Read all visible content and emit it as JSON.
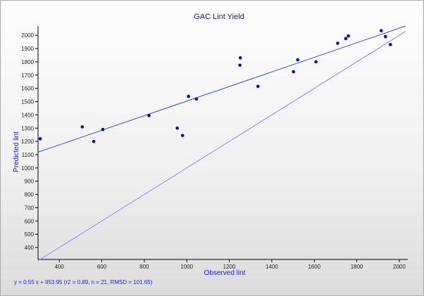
{
  "chart_data": {
    "type": "scatter",
    "title": "GAC Lint Yield",
    "xlabel": "Observed lint",
    "ylabel": "Predicted lint",
    "xlim": [
      300,
      2040
    ],
    "ylim": [
      310,
      2070
    ],
    "xticks": [
      400,
      600,
      800,
      1000,
      1200,
      1400,
      1600,
      1800,
      2000
    ],
    "yticks": [
      400,
      500,
      600,
      700,
      800,
      900,
      1000,
      1100,
      1200,
      1300,
      1400,
      1500,
      1600,
      1700,
      1800,
      1900,
      2000
    ],
    "grid": false,
    "points": [
      {
        "x": 310,
        "y": 1220
      },
      {
        "x": 508,
        "y": 1310
      },
      {
        "x": 562,
        "y": 1200
      },
      {
        "x": 605,
        "y": 1290
      },
      {
        "x": 822,
        "y": 1395
      },
      {
        "x": 955,
        "y": 1300
      },
      {
        "x": 980,
        "y": 1245
      },
      {
        "x": 1008,
        "y": 1540
      },
      {
        "x": 1045,
        "y": 1520
      },
      {
        "x": 1250,
        "y": 1775
      },
      {
        "x": 1252,
        "y": 1830
      },
      {
        "x": 1335,
        "y": 1615
      },
      {
        "x": 1502,
        "y": 1725
      },
      {
        "x": 1522,
        "y": 1815
      },
      {
        "x": 1608,
        "y": 1800
      },
      {
        "x": 1710,
        "y": 1940
      },
      {
        "x": 1748,
        "y": 1975
      },
      {
        "x": 1760,
        "y": 1995
      },
      {
        "x": 1915,
        "y": 2035
      },
      {
        "x": 1935,
        "y": 1990
      },
      {
        "x": 1958,
        "y": 1930
      }
    ],
    "regression": {
      "slope": 0.55,
      "intercept": 953.95,
      "x_range": [
        300,
        2030
      ]
    },
    "identity_line": {
      "x_range": [
        300,
        2030
      ]
    },
    "regression_text": "y = 0.55 x + 953.95 (r2 = 0.89, n = 21, RMSD = 101.65)",
    "colors": {
      "points": "#0000dd",
      "regression_line": "#2d2dd6",
      "identity_line": "#7b7bea",
      "axis": "#000000",
      "title": "#1a1a8a",
      "axis_title": "#2222cc"
    }
  }
}
